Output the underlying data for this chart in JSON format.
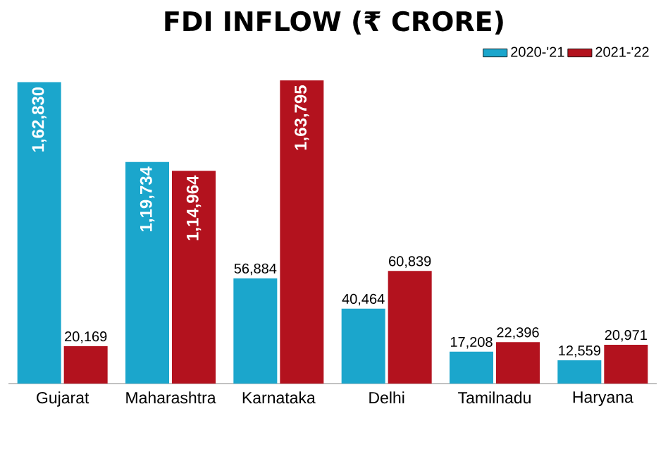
{
  "chart_data": {
    "type": "bar",
    "title": "FDI INFLOW (₹ CRORE)",
    "categories": [
      "Gujarat",
      "Maharashtra",
      "Karnataka",
      "Delhi",
      "Tamilnadu",
      "Haryana"
    ],
    "series": [
      {
        "name": "2020-'21",
        "color": "#1ba6cc",
        "values": [
          162830,
          119734,
          56884,
          40464,
          17208,
          12559
        ],
        "value_labels": [
          "1,62,830",
          "1,19,734",
          "56,884",
          "40,464",
          "17,208",
          "12,559"
        ]
      },
      {
        "name": "2021-'22",
        "color": "#b3121e",
        "values": [
          20169,
          114964,
          163795,
          60839,
          22396,
          20971
        ],
        "value_labels": [
          "20,169",
          "1,14,964",
          "1,63,795",
          "60,839",
          "22,396",
          "20,971"
        ]
      }
    ],
    "legend": "top right"
  }
}
